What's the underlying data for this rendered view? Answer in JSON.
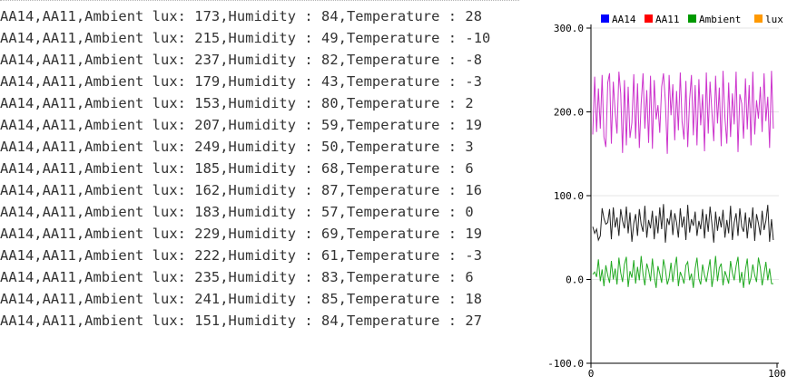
{
  "serial_monitor": {
    "lines": [
      "AA14,AA11,Ambient lux: 173,Humidity : 84,Temperature : 28",
      "AA14,AA11,Ambient lux: 215,Humidity : 49,Temperature : -10",
      "AA14,AA11,Ambient lux: 237,Humidity : 82,Temperature : -8",
      "AA14,AA11,Ambient lux: 179,Humidity : 43,Temperature : -3",
      "AA14,AA11,Ambient lux: 153,Humidity : 80,Temperature : 2",
      "AA14,AA11,Ambient lux: 207,Humidity : 59,Temperature : 19",
      "AA14,AA11,Ambient lux: 249,Humidity : 50,Temperature : 3",
      "AA14,AA11,Ambient lux: 185,Humidity : 68,Temperature : 6",
      "AA14,AA11,Ambient lux: 162,Humidity : 87,Temperature : 16",
      "AA14,AA11,Ambient lux: 183,Humidity : 57,Temperature : 0",
      "AA14,AA11,Ambient lux: 229,Humidity : 69,Temperature : 19",
      "AA14,AA11,Ambient lux: 222,Humidity : 61,Temperature : -3",
      "AA14,AA11,Ambient lux: 235,Humidity : 83,Temperature : 6",
      "AA14,AA11,Ambient lux: 241,Humidity : 85,Temperature : 18",
      "AA14,AA11,Ambient lux: 151,Humidity : 84,Temperature : 27"
    ]
  },
  "chart_data": {
    "type": "line",
    "legend": [
      {
        "name": "AA14",
        "color": "#0000ff"
      },
      {
        "name": "AA11",
        "color": "#ff0000"
      },
      {
        "name": "Ambient",
        "color": "#009900"
      },
      {
        "name": "lux",
        "color": "#ff9900"
      }
    ],
    "legend_placement": "top",
    "ylim": [
      -100,
      300
    ],
    "xlim": [
      0,
      100
    ],
    "y_ticks": [
      "300.0",
      "200.0",
      "100.0",
      "0.0",
      "-100.0"
    ],
    "x_ticks": [
      "0",
      "100"
    ],
    "grid": true,
    "series": [
      {
        "color": "#cc33cc",
        "x": [
          1,
          2,
          3,
          4,
          5,
          6,
          7,
          8,
          9,
          10,
          11,
          12,
          13,
          14,
          15,
          16,
          17,
          18,
          19,
          20,
          21,
          22,
          23,
          24,
          25,
          26,
          27,
          28,
          29,
          30,
          31,
          32,
          33,
          34,
          35,
          36,
          37,
          38,
          39,
          40,
          41,
          42,
          43,
          44,
          45,
          46,
          47,
          48,
          49,
          50,
          51,
          52,
          53,
          54,
          55,
          56,
          57,
          58,
          59,
          60,
          61,
          62,
          63,
          64,
          65,
          66,
          67,
          68,
          69,
          70,
          71,
          72,
          73,
          74,
          75,
          76,
          77,
          78,
          79,
          80,
          81,
          82,
          83,
          84,
          85,
          86,
          87,
          88,
          89,
          90,
          91,
          92,
          93,
          94,
          95,
          96,
          97,
          98
        ],
        "values": [
          173,
          242,
          176,
          228,
          180,
          244,
          170,
          158,
          235,
          246,
          162,
          236,
          200,
          174,
          248,
          222,
          151,
          238,
          160,
          230,
          169,
          187,
          245,
          168,
          234,
          157,
          210,
          246,
          180,
          226,
          163,
          243,
          156,
          238,
          191,
          208,
          175,
          230,
          246,
          212,
          150,
          244,
          196,
          233,
          166,
          225,
          178,
          247,
          188,
          167,
          237,
          158,
          215,
          244,
          172,
          232,
          160,
          239,
          184,
          221,
          153,
          247,
          174,
          236,
          199,
          165,
          243,
          186,
          229,
          159,
          249,
          193,
          162,
          235,
          170,
          222,
          185,
          248,
          152,
          221,
          210,
          168,
          240,
          179,
          232,
          160,
          248,
          173,
          214,
          192,
          230,
          176,
          246,
          189,
          218,
          157,
          249,
          180
        ]
      },
      {
        "color": "#222222",
        "x": [
          1,
          2,
          3,
          4,
          5,
          6,
          7,
          8,
          9,
          10,
          11,
          12,
          13,
          14,
          15,
          16,
          17,
          18,
          19,
          20,
          21,
          22,
          23,
          24,
          25,
          26,
          27,
          28,
          29,
          30,
          31,
          32,
          33,
          34,
          35,
          36,
          37,
          38,
          39,
          40,
          41,
          42,
          43,
          44,
          45,
          46,
          47,
          48,
          49,
          50,
          51,
          52,
          53,
          54,
          55,
          56,
          57,
          58,
          59,
          60,
          61,
          62,
          63,
          64,
          65,
          66,
          67,
          68,
          69,
          70,
          71,
          72,
          73,
          74,
          75,
          76,
          77,
          78,
          79,
          80,
          81,
          82,
          83,
          84,
          85,
          86,
          87,
          88,
          89,
          90,
          91,
          92,
          93,
          94,
          95,
          96,
          97,
          98
        ],
        "values": [
          63,
          55,
          60,
          47,
          52,
          85,
          73,
          66,
          68,
          84,
          48,
          86,
          62,
          74,
          52,
          84,
          70,
          61,
          87,
          55,
          80,
          45,
          67,
          78,
          52,
          84,
          66,
          57,
          88,
          50,
          71,
          61,
          82,
          48,
          76,
          55,
          86,
          60,
          90,
          44,
          73,
          65,
          83,
          53,
          79,
          68,
          50,
          85,
          62,
          75,
          47,
          89,
          56,
          72,
          64,
          81,
          52,
          70,
          60,
          84,
          49,
          78,
          57,
          87,
          66,
          44,
          81,
          58,
          75,
          62,
          83,
          50,
          71,
          55,
          88,
          47,
          68,
          79,
          52,
          85,
          63,
          57,
          80,
          49,
          74,
          61,
          86,
          46,
          78,
          67,
          53,
          82,
          59,
          70,
          89,
          45,
          72,
          47
        ]
      },
      {
        "color": "#22aa22",
        "x": [
          1,
          2,
          3,
          4,
          5,
          6,
          7,
          8,
          9,
          10,
          11,
          12,
          13,
          14,
          15,
          16,
          17,
          18,
          19,
          20,
          21,
          22,
          23,
          24,
          25,
          26,
          27,
          28,
          29,
          30,
          31,
          32,
          33,
          34,
          35,
          36,
          37,
          38,
          39,
          40,
          41,
          42,
          43,
          44,
          45,
          46,
          47,
          48,
          49,
          50,
          51,
          52,
          53,
          54,
          55,
          56,
          57,
          58,
          59,
          60,
          61,
          62,
          63,
          64,
          65,
          66,
          67,
          68,
          69,
          70,
          71,
          72,
          73,
          74,
          75,
          76,
          77,
          78,
          79,
          80,
          81,
          82,
          83,
          84,
          85,
          86,
          87,
          88,
          89,
          90,
          91,
          92,
          93,
          94,
          95,
          96,
          97,
          98
        ],
        "values": [
          6,
          9,
          3,
          24,
          -2,
          12,
          -8,
          17,
          5,
          -4,
          22,
          0,
          13,
          -6,
          26,
          8,
          -3,
          18,
          27,
          -9,
          10,
          2,
          23,
          -5,
          15,
          -1,
          28,
          6,
          -7,
          19,
          11,
          -2,
          25,
          4,
          -10,
          16,
          7,
          -4,
          24,
          12,
          -6,
          2,
          20,
          -3,
          14,
          27,
          -8,
          9,
          3,
          -5,
          17,
          21,
          -1,
          7,
          -10,
          13,
          26,
          1,
          -6,
          18,
          5,
          -3,
          11,
          24,
          -9,
          6,
          28,
          -2,
          14,
          19,
          -7,
          10,
          3,
          -5,
          22,
          8,
          -1,
          16,
          27,
          -4,
          9,
          -10,
          12,
          25,
          -6,
          2,
          18,
          5,
          -3,
          26,
          14,
          -7,
          7,
          21,
          -1,
          13,
          -5,
          -5
        ]
      }
    ]
  }
}
